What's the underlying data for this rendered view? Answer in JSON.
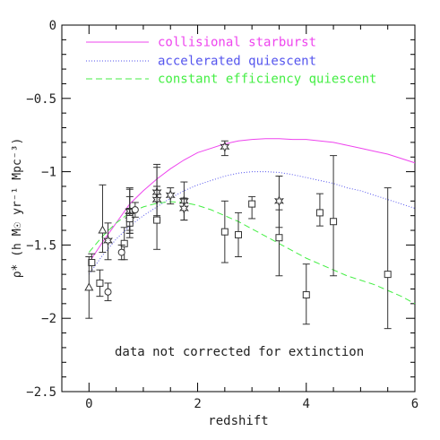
{
  "chart_data": {
    "type": "scatter",
    "xlabel": "redshift",
    "ylabel": "ρ̇* (h M☉ yr⁻¹ Mpc⁻³)",
    "xlim": [
      -0.5,
      6
    ],
    "ylim": [
      -2.5,
      0
    ],
    "xticks": [
      0,
      2,
      4,
      6
    ],
    "yticks": [
      0,
      -0.5,
      -1,
      -1.5,
      -2,
      -2.5
    ],
    "xtick_labels": [
      "0",
      "2",
      "4",
      "6"
    ],
    "ytick_labels": [
      "0",
      "−0.5",
      "−1",
      "−1.5",
      "−2",
      "−2.5"
    ],
    "grid": false,
    "legend_position": "top-left",
    "annotation": "data not corrected for extinction",
    "series": [
      {
        "name": "collisional starburst",
        "kind": "line",
        "style": "solid",
        "color": "#ee44ee",
        "x": [
          0,
          0.25,
          0.5,
          0.75,
          1,
          1.25,
          1.5,
          1.75,
          2,
          2.25,
          2.5,
          2.75,
          3,
          3.25,
          3.5,
          3.75,
          4,
          4.25,
          4.5,
          4.75,
          5,
          5.25,
          5.5,
          5.75,
          6
        ],
        "y": [
          -1.62,
          -1.48,
          -1.35,
          -1.22,
          -1.13,
          -1.05,
          -0.98,
          -0.92,
          -0.87,
          -0.84,
          -0.81,
          -0.79,
          -0.78,
          -0.775,
          -0.775,
          -0.78,
          -0.78,
          -0.79,
          -0.8,
          -0.82,
          -0.84,
          -0.86,
          -0.88,
          -0.91,
          -0.94
        ]
      },
      {
        "name": "accelerated quiescent",
        "kind": "line",
        "style": "dotted",
        "color": "#5555ee",
        "x": [
          0,
          0.25,
          0.5,
          0.75,
          1,
          1.25,
          1.5,
          1.75,
          2,
          2.25,
          2.5,
          2.75,
          3,
          3.25,
          3.5,
          3.75,
          4,
          4.25,
          4.5,
          4.75,
          5,
          5.25,
          5.5,
          5.75,
          6
        ],
        "y": [
          -1.7,
          -1.57,
          -1.46,
          -1.37,
          -1.3,
          -1.24,
          -1.18,
          -1.13,
          -1.09,
          -1.06,
          -1.03,
          -1.01,
          -1.0,
          -1.0,
          -1.005,
          -1.02,
          -1.04,
          -1.06,
          -1.08,
          -1.11,
          -1.13,
          -1.16,
          -1.19,
          -1.22,
          -1.25
        ]
      },
      {
        "name": "constant efficiency quiescent",
        "kind": "line",
        "style": "dashed",
        "color": "#44ee44",
        "x": [
          0,
          0.25,
          0.5,
          0.75,
          1,
          1.25,
          1.5,
          1.75,
          2,
          2.25,
          2.5,
          2.75,
          3,
          3.25,
          3.5,
          3.75,
          4,
          4.25,
          4.5,
          4.75,
          5,
          5.25,
          5.5,
          5.75,
          6
        ],
        "y": [
          -1.55,
          -1.44,
          -1.35,
          -1.28,
          -1.24,
          -1.215,
          -1.205,
          -1.21,
          -1.23,
          -1.26,
          -1.3,
          -1.34,
          -1.39,
          -1.44,
          -1.49,
          -1.54,
          -1.59,
          -1.63,
          -1.67,
          -1.71,
          -1.74,
          -1.77,
          -1.81,
          -1.85,
          -1.9
        ]
      },
      {
        "kind": "points",
        "marker": "star",
        "color": "#333333",
        "x": [
          0.35,
          0.75,
          0.75,
          1.25,
          1.25,
          1.5,
          1.75,
          1.75,
          2.5,
          3.5
        ],
        "y": [
          -1.47,
          -1.27,
          -1.3,
          -1.14,
          -1.19,
          -1.16,
          -1.2,
          -1.25,
          -0.83,
          -1.2
        ],
        "y_low": [
          -1.6,
          -1.4,
          -1.42,
          -1.3,
          -1.33,
          -1.22,
          -1.33,
          -1.33,
          -0.89,
          -1.38
        ],
        "y_high": [
          -1.35,
          -1.12,
          -1.17,
          -0.97,
          -1.1,
          -1.11,
          -1.07,
          -1.18,
          -0.79,
          -1.03
        ]
      },
      {
        "kind": "points",
        "marker": "square",
        "color": "#333333",
        "x": [
          0.05,
          0.2,
          0.65,
          0.75,
          0.75,
          1.25,
          2.5,
          2.75,
          3.0,
          3.5,
          4.0,
          4.25,
          4.5,
          5.5
        ],
        "y": [
          -1.62,
          -1.76,
          -1.49,
          -1.35,
          -1.32,
          -1.33,
          -1.41,
          -1.43,
          -1.22,
          -1.45,
          -1.84,
          -1.28,
          -1.34,
          -1.7
        ],
        "y_low": [
          -1.68,
          -1.85,
          -1.6,
          -1.45,
          -1.42,
          -1.53,
          -1.62,
          -1.58,
          -1.32,
          -1.71,
          -2.04,
          -1.37,
          -1.71,
          -2.07
        ],
        "y_high": [
          -1.56,
          -1.67,
          -1.38,
          -1.25,
          -1.11,
          -0.95,
          -1.2,
          -1.28,
          -1.17,
          -1.26,
          -1.63,
          -1.15,
          -0.89,
          -1.11
        ]
      },
      {
        "kind": "points",
        "marker": "circle",
        "color": "#333333",
        "x": [
          0.35,
          0.6,
          0.85
        ],
        "y": [
          -1.82,
          -1.55,
          -1.26
        ],
        "y_low": [
          -1.88,
          -1.6,
          -1.31
        ],
        "y_high": [
          -1.76,
          -1.5,
          -1.21
        ]
      },
      {
        "kind": "points",
        "marker": "triangle",
        "color": "#333333",
        "x": [
          0.0,
          0.25
        ],
        "y": [
          -1.79,
          -1.4
        ],
        "y_low": [
          -2.0,
          -1.55
        ],
        "y_high": [
          -1.58,
          -1.09
        ]
      }
    ]
  }
}
